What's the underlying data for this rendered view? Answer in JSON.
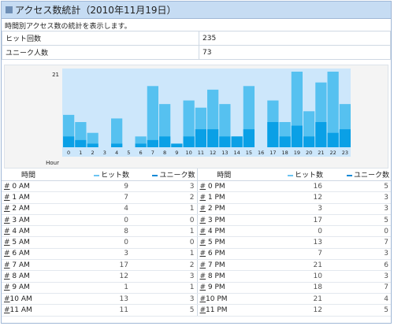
{
  "title": "アクセス数統計（2010年11月19日）",
  "description": "時間別アクセス数の統計を表示します。",
  "summary": [
    {
      "label": "ヒット回数",
      "value": "235"
    },
    {
      "label": "ユニーク人数",
      "value": "73"
    }
  ],
  "colors": {
    "hit": "#56c1f0",
    "unique": "#0aa0e6",
    "plot_bg": "#cde7fb"
  },
  "table_headers": {
    "time": "時間",
    "hits": "ヒット数",
    "unique": "ユニーク数"
  },
  "chart_data": {
    "type": "bar",
    "title": "",
    "xlabel": "Hour",
    "ylabel": "",
    "ymax_label": "21",
    "ylim": [
      0,
      21
    ],
    "categories": [
      "0",
      "1",
      "2",
      "3",
      "4",
      "5",
      "6",
      "7",
      "8",
      "9",
      "10",
      "11",
      "12",
      "13",
      "14",
      "15",
      "16",
      "17",
      "18",
      "19",
      "20",
      "21",
      "22",
      "23"
    ],
    "series": [
      {
        "name": "ヒット数",
        "values": [
          9,
          7,
          4,
          0,
          8,
          0,
          3,
          17,
          12,
          1,
          13,
          11,
          16,
          12,
          3,
          17,
          0,
          13,
          7,
          21,
          10,
          18,
          21,
          12
        ]
      },
      {
        "name": "ユニーク数",
        "values": [
          3,
          2,
          1,
          0,
          1,
          0,
          1,
          2,
          3,
          1,
          3,
          5,
          5,
          3,
          3,
          5,
          0,
          7,
          3,
          6,
          3,
          7,
          4,
          5
        ]
      }
    ]
  },
  "rows_am": [
    {
      "marker": "#",
      "time": " 0 AM",
      "hits": "9",
      "unique": "3"
    },
    {
      "marker": "#",
      "time": " 1 AM",
      "hits": "7",
      "unique": "2"
    },
    {
      "marker": "#",
      "time": " 2 AM",
      "hits": "4",
      "unique": "1"
    },
    {
      "marker": "#",
      "time": " 3 AM",
      "hits": "0",
      "unique": "0"
    },
    {
      "marker": "#",
      "time": " 4 AM",
      "hits": "8",
      "unique": "1"
    },
    {
      "marker": "#",
      "time": " 5 AM",
      "hits": "0",
      "unique": "0"
    },
    {
      "marker": "#",
      "time": " 6 AM",
      "hits": "3",
      "unique": "1"
    },
    {
      "marker": "#",
      "time": " 7 AM",
      "hits": "17",
      "unique": "2"
    },
    {
      "marker": "#",
      "time": " 8 AM",
      "hits": "12",
      "unique": "3"
    },
    {
      "marker": "#",
      "time": " 9 AM",
      "hits": "1",
      "unique": "1"
    },
    {
      "marker": "#",
      "time": "10 AM",
      "hits": "13",
      "unique": "3"
    },
    {
      "marker": "#",
      "time": "11 AM",
      "hits": "11",
      "unique": "5"
    }
  ],
  "rows_pm": [
    {
      "marker": "#",
      "time": " 0 PM",
      "hits": "16",
      "unique": "5"
    },
    {
      "marker": "#",
      "time": " 1 PM",
      "hits": "12",
      "unique": "3"
    },
    {
      "marker": "#",
      "time": " 2 PM",
      "hits": "3",
      "unique": "3"
    },
    {
      "marker": "#",
      "time": " 3 PM",
      "hits": "17",
      "unique": "5"
    },
    {
      "marker": "#",
      "time": " 4 PM",
      "hits": "0",
      "unique": "0"
    },
    {
      "marker": "#",
      "time": " 5 PM",
      "hits": "13",
      "unique": "7"
    },
    {
      "marker": "#",
      "time": " 6 PM",
      "hits": "7",
      "unique": "3"
    },
    {
      "marker": "#",
      "time": " 7 PM",
      "hits": "21",
      "unique": "6"
    },
    {
      "marker": "#",
      "time": " 8 PM",
      "hits": "10",
      "unique": "3"
    },
    {
      "marker": "#",
      "time": " 9 PM",
      "hits": "18",
      "unique": "7"
    },
    {
      "marker": "#",
      "time": "10 PM",
      "hits": "21",
      "unique": "4"
    },
    {
      "marker": "#",
      "time": "11 PM",
      "hits": "12",
      "unique": "5"
    }
  ]
}
